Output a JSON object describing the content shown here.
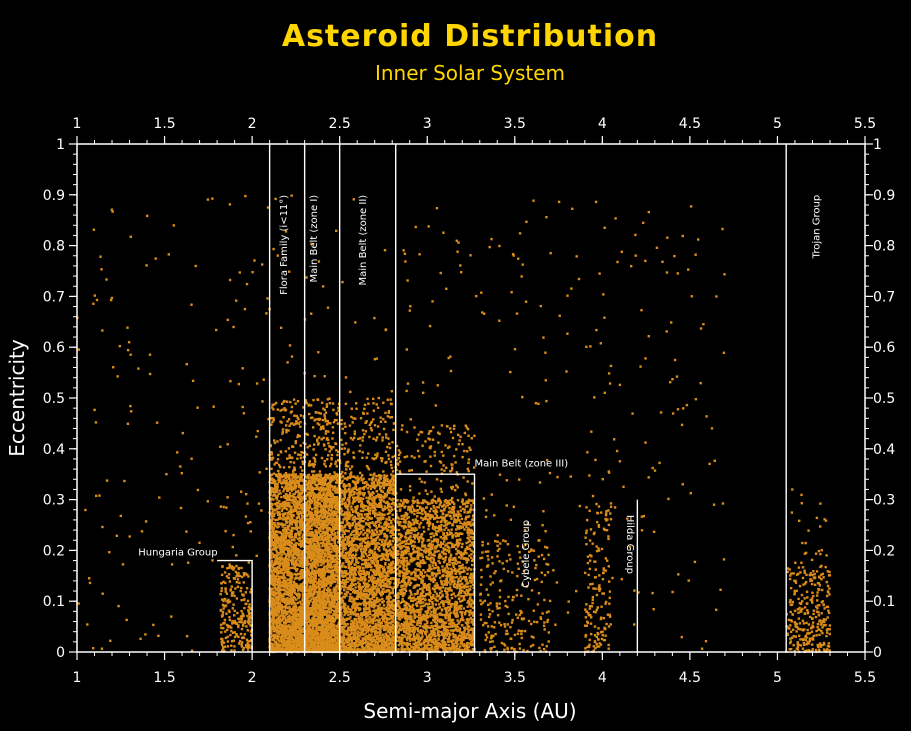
{
  "chart_data": {
    "type": "scatter",
    "title": "Asteroid Distribution",
    "subtitle": "Inner Solar System",
    "xlabel": "Semi-major Axis (AU)",
    "ylabel": "Eccentricity",
    "xlim": [
      1,
      5.5
    ],
    "ylim": [
      0,
      1
    ],
    "x_ticks": [
      1,
      1.5,
      2,
      2.5,
      3,
      3.5,
      4,
      4.5,
      5,
      5.5
    ],
    "y_ticks_left": [
      "0",
      "0.1",
      "0.2",
      "0.3",
      "0.4",
      "0.5",
      "0.6",
      "0.7",
      "0.8",
      "0.9",
      "1"
    ],
    "y_ticks_right": [
      "0",
      "0.1",
      "0.2",
      "0.3",
      "0.4",
      "0.5",
      "0.6",
      "0.7",
      "0.8",
      "0.9",
      "1"
    ],
    "point_color": "#d98c1a",
    "line_color": "#ffffff",
    "grid": false,
    "regions": [
      {
        "name": "Hungaria Group",
        "bracket": {
          "x": [
            1.8,
            2.0
          ],
          "y": 0.18
        }
      },
      {
        "name": "Flora Family (i<11°)",
        "x_line": 2.1,
        "orientation": "vertical"
      },
      {
        "name": "Main Belt (zone I)",
        "x_line": 2.3,
        "orientation": "vertical"
      },
      {
        "name": "Main Belt (zone II)",
        "x_line": 2.5,
        "orientation": "vertical"
      },
      {
        "name": "Main Belt (zone III)",
        "bracket": {
          "x": [
            2.82,
            3.27
          ],
          "y": 0.35
        }
      },
      {
        "name": "Cybele Group",
        "orientation": "vertical"
      },
      {
        "name": "Hilda Group",
        "x_line": 4.2,
        "line_top": 0.3,
        "orientation": "vertical"
      },
      {
        "name": "Trojan Group",
        "x_line": 5.05,
        "orientation": "vertical"
      }
    ],
    "boundary_lines_x": [
      2.1,
      2.3,
      2.5,
      2.82
    ],
    "clusters": [
      {
        "label": "Hungaria Group",
        "a_range": [
          1.82,
          2.0
        ],
        "e_range": [
          0.0,
          0.17
        ],
        "approx_points": 250
      },
      {
        "label": "Flora Family (i<11°)",
        "a_range": [
          2.1,
          2.3
        ],
        "e_range": [
          0.0,
          0.35
        ],
        "approx_points": 2400
      },
      {
        "label": "Main Belt (zone I)",
        "a_range": [
          2.3,
          2.5
        ],
        "e_range": [
          0.0,
          0.35
        ],
        "approx_points": 2800
      },
      {
        "label": "Main Belt (zone II)",
        "a_range": [
          2.5,
          2.82
        ],
        "e_range": [
          0.0,
          0.35
        ],
        "approx_points": 2600
      },
      {
        "label": "Main Belt (zone III)",
        "a_range": [
          2.82,
          3.27
        ],
        "e_range": [
          0.0,
          0.3
        ],
        "approx_points": 2400
      },
      {
        "label": "Cybele Group",
        "a_range": [
          3.3,
          3.7
        ],
        "e_range": [
          0.0,
          0.22
        ],
        "approx_points": 220
      },
      {
        "label": "Hilda Group",
        "a_range": [
          3.9,
          4.05
        ],
        "e_range": [
          0.0,
          0.3
        ],
        "approx_points": 160
      },
      {
        "label": "Trojan Group",
        "a_range": [
          5.05,
          5.3
        ],
        "e_range": [
          0.0,
          0.17
        ],
        "approx_points": 300
      },
      {
        "label": "scattered",
        "a_range": [
          1.0,
          4.7
        ],
        "e_range": [
          0.0,
          0.9
        ],
        "approx_points": 450
      }
    ]
  }
}
